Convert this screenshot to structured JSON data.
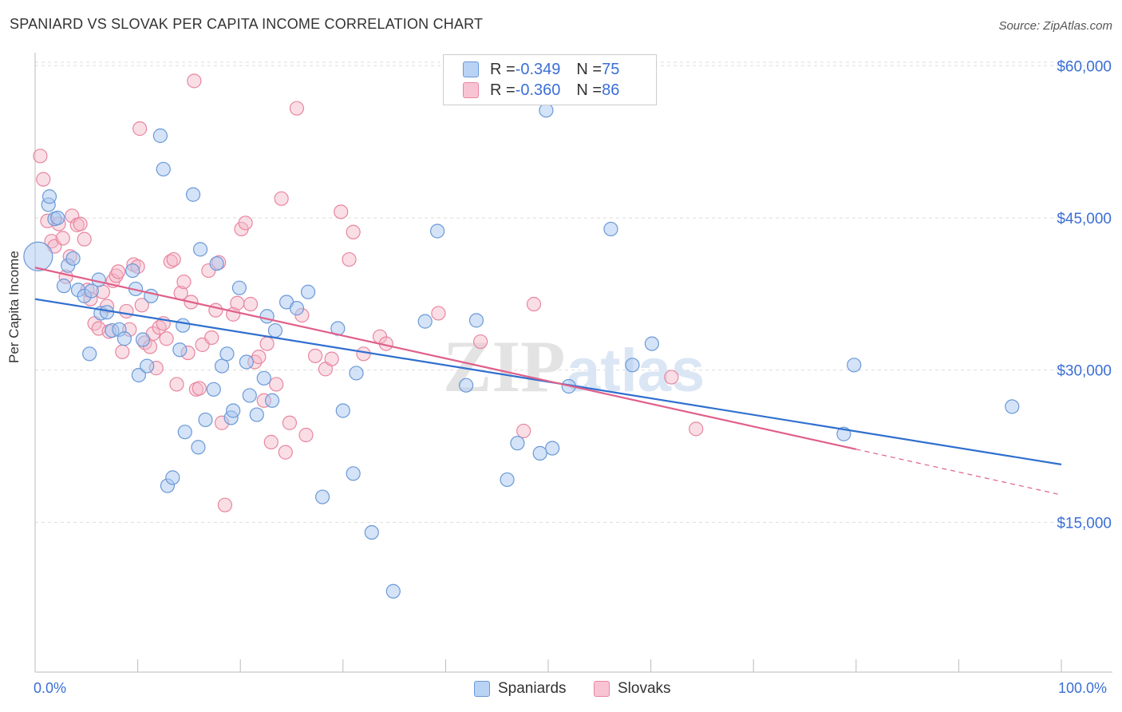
{
  "title": "SPANIARD VS SLOVAK PER CAPITA INCOME CORRELATION CHART",
  "source": "Source: ZipAtlas.com",
  "watermark": {
    "zip": "ZIP",
    "atlas": "atlas"
  },
  "legend": {
    "rows": [
      {
        "r_label": "R = ",
        "r_value": "-0.349",
        "n_label": "N = ",
        "n_value": "75"
      },
      {
        "r_label": "R = ",
        "r_value": "-0.360",
        "n_label": "N = ",
        "n_value": "86"
      }
    ]
  },
  "bottom_legend": [
    "Spaniards",
    "Slovaks"
  ],
  "x_ticks": [
    "0.0%",
    "100.0%"
  ],
  "colors": {
    "spaniards_fill": "#a9c7f0",
    "spaniards_stroke": "#6a99d8",
    "spaniards_line": "#2f6fce",
    "slovaks_fill": "#f5b5c8",
    "slovaks_stroke": "#e8869f",
    "slovaks_line": "#e0608a",
    "tick_label": "#3b6fd6",
    "grid": "#dddddd"
  },
  "chart_data": {
    "type": "scatter",
    "title": "SPANIARD VS SLOVAK PER CAPITA INCOME CORRELATION CHART",
    "xlabel": "",
    "ylabel": "Per Capita Income",
    "xlim": [
      0,
      100
    ],
    "ylim": [
      0,
      63000
    ],
    "y_ticks": [
      15000,
      30000,
      45000,
      60000
    ],
    "y_tick_labels": [
      "$15,000",
      "$30,000",
      "$45,000",
      "$60,000"
    ],
    "grid": true,
    "legend_position": "top-center",
    "series": [
      {
        "name": "Spaniards",
        "r": -0.349,
        "n": 75,
        "trend": {
          "x": [
            0,
            100
          ],
          "y": [
            37000,
            20700
          ]
        },
        "points": [
          [
            0.3,
            41200
          ],
          [
            1.3,
            46300
          ],
          [
            1.4,
            47100
          ],
          [
            1.9,
            44900
          ],
          [
            2.2,
            45000
          ],
          [
            2.8,
            38300
          ],
          [
            3.2,
            40300
          ],
          [
            3.7,
            41000
          ],
          [
            4.2,
            37900
          ],
          [
            4.8,
            37300
          ],
          [
            5.5,
            37800
          ],
          [
            5.3,
            31600
          ],
          [
            6.4,
            35600
          ],
          [
            7.0,
            35700
          ],
          [
            6.2,
            38900
          ],
          [
            7.5,
            33900
          ],
          [
            8.2,
            34000
          ],
          [
            9.5,
            39800
          ],
          [
            9.8,
            38000
          ],
          [
            8.7,
            33100
          ],
          [
            10.5,
            33000
          ],
          [
            10.1,
            29500
          ],
          [
            10.9,
            30400
          ],
          [
            11.3,
            37300
          ],
          [
            12.2,
            53100
          ],
          [
            12.5,
            49800
          ],
          [
            12.9,
            18600
          ],
          [
            13.4,
            19400
          ],
          [
            14.1,
            32000
          ],
          [
            14.4,
            34400
          ],
          [
            14.6,
            23900
          ],
          [
            15.4,
            47300
          ],
          [
            15.9,
            22400
          ],
          [
            16.1,
            41900
          ],
          [
            16.6,
            25100
          ],
          [
            17.4,
            28100
          ],
          [
            17.7,
            40500
          ],
          [
            18.2,
            30400
          ],
          [
            18.7,
            31600
          ],
          [
            19.1,
            25300
          ],
          [
            19.3,
            26000
          ],
          [
            19.9,
            38100
          ],
          [
            20.6,
            30800
          ],
          [
            20.9,
            27500
          ],
          [
            21.6,
            25600
          ],
          [
            22.3,
            29200
          ],
          [
            22.6,
            35300
          ],
          [
            23.1,
            27000
          ],
          [
            23.4,
            33900
          ],
          [
            24.5,
            36700
          ],
          [
            25.5,
            36100
          ],
          [
            26.6,
            37700
          ],
          [
            28.0,
            17500
          ],
          [
            29.5,
            34100
          ],
          [
            30.0,
            26000
          ],
          [
            31.0,
            19800
          ],
          [
            31.3,
            29700
          ],
          [
            32.8,
            14000
          ],
          [
            34.9,
            8200
          ],
          [
            38.0,
            34800
          ],
          [
            39.2,
            43700
          ],
          [
            42.0,
            28500
          ],
          [
            43.0,
            34900
          ],
          [
            46.0,
            19200
          ],
          [
            47.0,
            22800
          ],
          [
            49.2,
            21800
          ],
          [
            49.8,
            55600
          ],
          [
            50.4,
            22300
          ],
          [
            52.0,
            28400
          ],
          [
            56.1,
            43900
          ],
          [
            58.2,
            30500
          ],
          [
            60.1,
            32600
          ],
          [
            78.8,
            23700
          ],
          [
            79.8,
            30500
          ],
          [
            95.2,
            26400
          ]
        ]
      },
      {
        "name": "Slovaks",
        "r": -0.36,
        "n": 86,
        "trend": {
          "x": [
            0,
            80
          ],
          "y": [
            40100,
            22200
          ],
          "dashed_to": [
            100,
            17700
          ]
        },
        "points": [
          [
            0.5,
            51100
          ],
          [
            0.8,
            48800
          ],
          [
            1.2,
            44700
          ],
          [
            1.6,
            42700
          ],
          [
            1.9,
            42200
          ],
          [
            2.3,
            44400
          ],
          [
            2.7,
            43000
          ],
          [
            3.0,
            39200
          ],
          [
            3.4,
            41200
          ],
          [
            3.6,
            45200
          ],
          [
            4.1,
            44300
          ],
          [
            4.4,
            44400
          ],
          [
            4.8,
            42900
          ],
          [
            5.1,
            37900
          ],
          [
            5.4,
            37000
          ],
          [
            5.8,
            34600
          ],
          [
            6.2,
            34100
          ],
          [
            6.6,
            37700
          ],
          [
            7.0,
            36300
          ],
          [
            7.2,
            33800
          ],
          [
            7.6,
            38800
          ],
          [
            7.9,
            39300
          ],
          [
            8.1,
            39700
          ],
          [
            8.5,
            31800
          ],
          [
            8.9,
            35800
          ],
          [
            9.2,
            34000
          ],
          [
            9.6,
            40400
          ],
          [
            10.0,
            40200
          ],
          [
            10.4,
            36400
          ],
          [
            10.7,
            32700
          ],
          [
            10.2,
            53800
          ],
          [
            11.2,
            32300
          ],
          [
            11.5,
            33600
          ],
          [
            11.8,
            30200
          ],
          [
            12.1,
            34200
          ],
          [
            12.5,
            34600
          ],
          [
            12.8,
            33100
          ],
          [
            13.2,
            40700
          ],
          [
            13.5,
            40900
          ],
          [
            13.8,
            28600
          ],
          [
            14.2,
            37600
          ],
          [
            14.5,
            38700
          ],
          [
            14.9,
            31700
          ],
          [
            15.2,
            36700
          ],
          [
            15.7,
            28100
          ],
          [
            16.0,
            28200
          ],
          [
            15.5,
            58500
          ],
          [
            16.3,
            32500
          ],
          [
            16.9,
            39800
          ],
          [
            17.2,
            33200
          ],
          [
            17.6,
            35900
          ],
          [
            17.9,
            40600
          ],
          [
            18.2,
            24800
          ],
          [
            18.5,
            16700
          ],
          [
            19.3,
            35500
          ],
          [
            19.7,
            36600
          ],
          [
            20.1,
            43900
          ],
          [
            20.5,
            44500
          ],
          [
            21.0,
            36500
          ],
          [
            21.4,
            30800
          ],
          [
            21.8,
            31300
          ],
          [
            22.3,
            27000
          ],
          [
            22.6,
            32600
          ],
          [
            23.0,
            22900
          ],
          [
            23.5,
            28600
          ],
          [
            24.0,
            46900
          ],
          [
            24.4,
            21900
          ],
          [
            24.8,
            24800
          ],
          [
            25.5,
            55800
          ],
          [
            26.0,
            35400
          ],
          [
            26.4,
            23600
          ],
          [
            27.3,
            31400
          ],
          [
            28.3,
            30100
          ],
          [
            28.9,
            31100
          ],
          [
            29.8,
            45600
          ],
          [
            30.6,
            40900
          ],
          [
            31.0,
            43600
          ],
          [
            32.0,
            31600
          ],
          [
            33.6,
            33300
          ],
          [
            34.2,
            32600
          ],
          [
            39.3,
            35600
          ],
          [
            43.4,
            32800
          ],
          [
            47.6,
            24000
          ],
          [
            48.6,
            36500
          ],
          [
            62.0,
            29300
          ],
          [
            64.4,
            24200
          ]
        ]
      }
    ]
  }
}
